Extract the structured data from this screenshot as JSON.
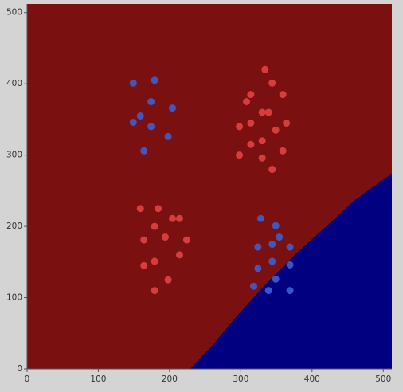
{
  "chart_data": {
    "type": "scatter",
    "xlim": [
      0,
      512
    ],
    "ylim": [
      0,
      512
    ],
    "xticks": [
      0,
      100,
      200,
      300,
      400,
      500
    ],
    "yticks": [
      0,
      100,
      200,
      300,
      400,
      500
    ],
    "background_color": "#7a1010",
    "region": {
      "color": "#000080",
      "x": [
        229,
        260,
        296,
        340,
        380,
        420,
        460,
        512
      ],
      "values": [
        0,
        33,
        76,
        124,
        164,
        200,
        237,
        274
      ]
    },
    "series": [
      {
        "color": "#3c5fd0",
        "x": [
          149,
          179,
          174,
          204,
          159,
          149,
          174,
          198,
          164,
          328,
          349,
          354,
          344,
          369,
          324,
          344,
          369,
          324,
          349,
          318,
          339,
          369
        ],
        "values": [
          401,
          405,
          375,
          366,
          355,
          346,
          340,
          326,
          306,
          211,
          201,
          185,
          175,
          171,
          171,
          151,
          146,
          141,
          126,
          116,
          110,
          110
        ]
      },
      {
        "color": "#e04343",
        "x": [
          334,
          344,
          314,
          359,
          308,
          330,
          339,
          364,
          314,
          298,
          349,
          330,
          314,
          359,
          298,
          330,
          344,
          159,
          184,
          204,
          214,
          179,
          194,
          164,
          224,
          214,
          179,
          164,
          198,
          179
        ],
        "values": [
          420,
          401,
          385,
          385,
          375,
          360,
          360,
          345,
          345,
          340,
          335,
          320,
          315,
          306,
          300,
          296,
          280,
          225,
          225,
          211,
          211,
          200,
          185,
          181,
          181,
          160,
          151,
          145,
          125,
          110
        ]
      }
    ]
  }
}
